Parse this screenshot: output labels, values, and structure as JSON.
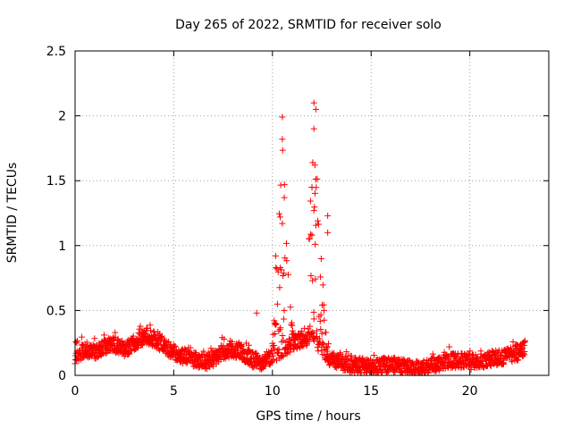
{
  "chart_data": {
    "type": "scatter",
    "title": "Day 265 of 2022, SRMTID for receiver solo",
    "xlabel": "GPS time / hours",
    "ylabel": "SRMTID / TECUs",
    "xlim": [
      0,
      24
    ],
    "ylim": [
      0,
      2.5
    ],
    "x_ticks": [
      0,
      5,
      10,
      15,
      20
    ],
    "x_tick_labels": [
      "0",
      "5",
      "10",
      "15",
      "20"
    ],
    "y_ticks": [
      0,
      0.5,
      1,
      1.5,
      2,
      2.5
    ],
    "y_tick_labels": [
      "0",
      "0.5",
      "1",
      "1.5",
      "2",
      "2.5"
    ],
    "grid": true,
    "marker": "+",
    "series": [
      {
        "name": "SRMTID",
        "color": "#ff0000",
        "baseline_profile": [
          [
            0.0,
            0.15
          ],
          [
            0.5,
            0.2
          ],
          [
            1.0,
            0.18
          ],
          [
            1.5,
            0.22
          ],
          [
            2.0,
            0.24
          ],
          [
            2.5,
            0.2
          ],
          [
            3.0,
            0.25
          ],
          [
            3.5,
            0.3
          ],
          [
            4.0,
            0.28
          ],
          [
            4.5,
            0.22
          ],
          [
            5.0,
            0.18
          ],
          [
            5.5,
            0.15
          ],
          [
            6.0,
            0.12
          ],
          [
            6.5,
            0.1
          ],
          [
            7.0,
            0.13
          ],
          [
            7.5,
            0.18
          ],
          [
            8.0,
            0.2
          ],
          [
            8.5,
            0.17
          ],
          [
            9.0,
            0.12
          ],
          [
            9.5,
            0.1
          ],
          [
            10.0,
            0.15
          ],
          [
            11.0,
            0.25
          ],
          [
            12.0,
            0.3
          ],
          [
            13.0,
            0.12
          ],
          [
            14.0,
            0.08
          ],
          [
            15.0,
            0.07
          ],
          [
            16.0,
            0.08
          ],
          [
            17.0,
            0.06
          ],
          [
            17.5,
            0.05
          ],
          [
            18.0,
            0.07
          ],
          [
            19.0,
            0.12
          ],
          [
            20.0,
            0.1
          ],
          [
            21.0,
            0.13
          ],
          [
            22.0,
            0.15
          ],
          [
            22.8,
            0.2
          ]
        ],
        "x_range": [
          0.0,
          22.8
        ],
        "burst_1": {
          "x_range": [
            10.0,
            11.2
          ],
          "peak_x": 10.5,
          "peak_y": 1.99
        },
        "burst_2": {
          "x_range": [
            11.8,
            13.0
          ],
          "peak_x": 12.15,
          "peak_y": 2.1
        },
        "notable_points": [
          [
            9.2,
            0.48
          ],
          [
            10.5,
            1.99
          ],
          [
            10.5,
            1.82
          ],
          [
            10.6,
            1.37
          ],
          [
            12.1,
            2.1
          ],
          [
            12.2,
            2.05
          ],
          [
            12.1,
            1.9
          ],
          [
            12.15,
            1.62
          ],
          [
            12.0,
            1.45
          ],
          [
            12.1,
            1.27
          ],
          [
            12.8,
            1.23
          ],
          [
            12.8,
            1.1
          ],
          [
            10.5,
            1.17
          ],
          [
            10.4,
            0.83
          ],
          [
            12.0,
            1.08
          ]
        ]
      }
    ]
  }
}
